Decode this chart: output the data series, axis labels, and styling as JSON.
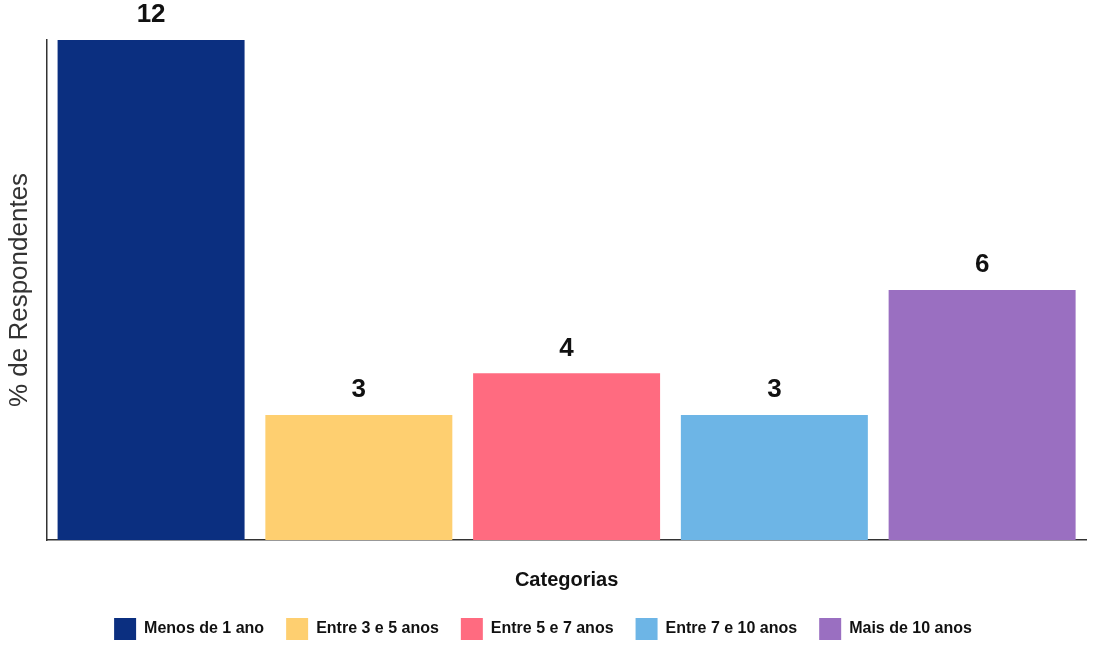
{
  "chart_data": {
    "type": "bar",
    "stacked": true,
    "categories": [
      null,
      null,
      null,
      null,
      null
    ],
    "series": [
      {
        "name": "Menos de 1 ano",
        "color": "#0b2f80",
        "values": [
          12,
          null,
          null,
          null,
          null
        ]
      },
      {
        "name": "Entre 3 e 5 anos",
        "color": "#fecf70",
        "values": [
          null,
          3,
          null,
          null,
          null
        ]
      },
      {
        "name": "Entre 5 e 7 anos",
        "color": "#ff6b80",
        "values": [
          null,
          null,
          4,
          null,
          null
        ]
      },
      {
        "name": "Entre 7 e 10 anos",
        "color": "#6db5e6",
        "values": [
          null,
          null,
          null,
          3,
          null
        ]
      },
      {
        "name": "Mais de 10 anos",
        "color": "#9a6fc1",
        "values": [
          null,
          null,
          null,
          null,
          6
        ]
      }
    ],
    "xlabel": "Categorias",
    "ylabel": "% de Respondentes",
    "ylim": [
      0,
      12
    ],
    "tick_labels": false,
    "data_labels": true,
    "legend": "bottom"
  }
}
